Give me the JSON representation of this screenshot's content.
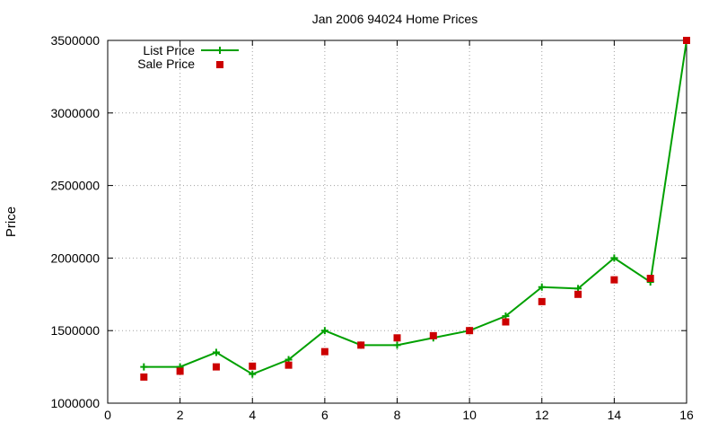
{
  "chart_data": {
    "type": "line",
    "title": "Jan 2006 94024 Home Prices",
    "xlabel": "",
    "ylabel": "Price",
    "xlim": [
      0,
      16
    ],
    "ylim": [
      1000000,
      3500000
    ],
    "xticks": [
      "0",
      "2",
      "4",
      "6",
      "8",
      "10",
      "12",
      "14",
      "16"
    ],
    "yticks": [
      "1000000",
      "1500000",
      "2000000",
      "2500000",
      "3000000",
      "3500000"
    ],
    "grid": true,
    "legend_position": "top-left",
    "series": [
      {
        "name": "List Price",
        "style": "line with + markers",
        "color": "#00a000",
        "x": [
          1,
          2,
          3,
          4,
          5,
          6,
          7,
          8,
          9,
          10,
          11,
          12,
          13,
          14,
          15,
          16
        ],
        "y": [
          1250000,
          1250000,
          1350000,
          1200000,
          1300000,
          1500000,
          1400000,
          1400000,
          1450000,
          1500000,
          1600000,
          1800000,
          1790000,
          2000000,
          1835000,
          3500000
        ]
      },
      {
        "name": "Sale Price",
        "style": "filled square points",
        "color": "#cc0000",
        "x": [
          1,
          2,
          3,
          4,
          5,
          6,
          7,
          8,
          9,
          10,
          11,
          12,
          13,
          14,
          15,
          16
        ],
        "y": [
          1180000,
          1220000,
          1250000,
          1255000,
          1262000,
          1355000,
          1400000,
          1450000,
          1465000,
          1500000,
          1560000,
          1700000,
          1750000,
          1850000,
          1860000,
          3500000
        ]
      }
    ]
  }
}
